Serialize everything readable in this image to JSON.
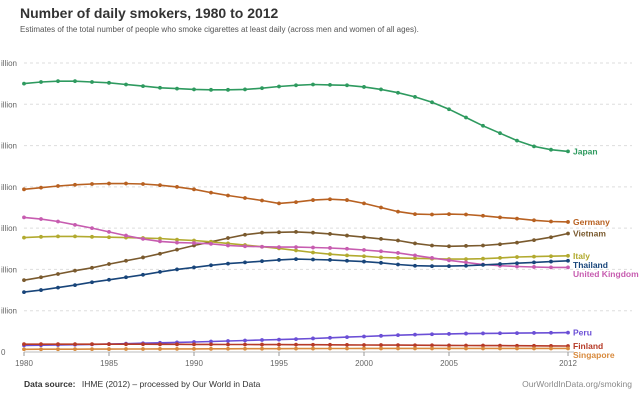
{
  "title": "Number of daily smokers, 1980 to 2012",
  "subtitle": "Estimates of the total number of people who smoke cigarettes at least daily (across men and women of all ages).",
  "footer": {
    "source_label": "Data source:",
    "source_text": "IHME (2012) – processed by Our World in Data",
    "credit": "OurWorldInData.org/smoking"
  },
  "chart_data": {
    "type": "line",
    "title": "Number of daily smokers, 1980 to 2012",
    "xlabel": "",
    "ylabel": "",
    "xlim": [
      1980,
      2012
    ],
    "ylim": [
      0,
      35000000
    ],
    "x_ticks": [
      1980,
      1985,
      1990,
      1995,
      2000,
      2005,
      2012
    ],
    "y_ticks": [
      0,
      5000000,
      10000000,
      15000000,
      20000000,
      25000000,
      30000000,
      35000000
    ],
    "y_tick_labels": [
      "0",
      "illion",
      "illion",
      "illion",
      "illion",
      "illion",
      "illion",
      "illion"
    ],
    "grid": true,
    "legend": "right-end labels",
    "x": [
      1980,
      1981,
      1982,
      1983,
      1984,
      1985,
      1986,
      1987,
      1988,
      1989,
      1990,
      1991,
      1992,
      1993,
      1994,
      1995,
      1996,
      1997,
      1998,
      1999,
      2000,
      2001,
      2002,
      2003,
      2004,
      2005,
      2006,
      2007,
      2008,
      2009,
      2010,
      2011,
      2012
    ],
    "series": [
      {
        "name": "Japan",
        "color": "#2e9a5f",
        "values": [
          32500000,
          32700000,
          32800000,
          32800000,
          32700000,
          32600000,
          32400000,
          32200000,
          32000000,
          31900000,
          31800000,
          31750000,
          31750000,
          31800000,
          31950000,
          32150000,
          32300000,
          32400000,
          32350000,
          32300000,
          32100000,
          31800000,
          31400000,
          30900000,
          30250000,
          29400000,
          28400000,
          27400000,
          26500000,
          25600000,
          24900000,
          24500000,
          24300000
        ]
      },
      {
        "name": "Germany",
        "color": "#b86121",
        "values": [
          19700000,
          19900000,
          20100000,
          20250000,
          20350000,
          20400000,
          20400000,
          20350000,
          20200000,
          20000000,
          19700000,
          19300000,
          18950000,
          18650000,
          18350000,
          18000000,
          18150000,
          18400000,
          18500000,
          18400000,
          18000000,
          17500000,
          17000000,
          16700000,
          16650000,
          16700000,
          16650000,
          16500000,
          16300000,
          16150000,
          15950000,
          15800000,
          15750000
        ]
      },
      {
        "name": "Vietnam",
        "color": "#7a5a2e",
        "values": [
          8700000,
          9050000,
          9450000,
          9850000,
          10200000,
          10650000,
          11050000,
          11450000,
          11900000,
          12400000,
          12900000,
          13350000,
          13800000,
          14200000,
          14450000,
          14500000,
          14550000,
          14450000,
          14300000,
          14100000,
          13900000,
          13700000,
          13500000,
          13150000,
          12900000,
          12800000,
          12850000,
          12900000,
          13050000,
          13250000,
          13550000,
          13900000,
          14350000
        ]
      },
      {
        "name": "Italy",
        "color": "#b2aa2f",
        "values": [
          13850000,
          13950000,
          14000000,
          14000000,
          13950000,
          13900000,
          13850000,
          13800000,
          13750000,
          13600000,
          13500000,
          13350000,
          13150000,
          12950000,
          12750000,
          12550000,
          12300000,
          12050000,
          11850000,
          11700000,
          11600000,
          11450000,
          11400000,
          11350000,
          11300000,
          11250000,
          11250000,
          11300000,
          11400000,
          11500000,
          11550000,
          11600000,
          11650000
        ]
      },
      {
        "name": "United Kingdom",
        "color": "#c75cb0",
        "values": [
          16300000,
          16100000,
          15800000,
          15400000,
          15000000,
          14550000,
          14100000,
          13700000,
          13400000,
          13250000,
          13200000,
          13100000,
          12900000,
          12800000,
          12750000,
          12700000,
          12700000,
          12650000,
          12600000,
          12500000,
          12350000,
          12200000,
          12000000,
          11700000,
          11400000,
          11100000,
          10850000,
          10600000,
          10450000,
          10350000,
          10300000,
          10250000,
          10250000
        ]
      },
      {
        "name": "Thailand",
        "color": "#18457a",
        "values": [
          7250000,
          7500000,
          7800000,
          8100000,
          8450000,
          8750000,
          9050000,
          9350000,
          9700000,
          10000000,
          10250000,
          10500000,
          10700000,
          10850000,
          11000000,
          11150000,
          11250000,
          11200000,
          11150000,
          11050000,
          10950000,
          10800000,
          10600000,
          10450000,
          10400000,
          10400000,
          10450000,
          10550000,
          10650000,
          10750000,
          10850000,
          10950000,
          11050000
        ]
      },
      {
        "name": "Peru",
        "color": "#6b4fd6",
        "values": [
          800000,
          820000,
          850000,
          880000,
          920000,
          960000,
          1010000,
          1060000,
          1110000,
          1160000,
          1210000,
          1270000,
          1330000,
          1390000,
          1450000,
          1500000,
          1560000,
          1640000,
          1720000,
          1800000,
          1880000,
          1960000,
          2040000,
          2100000,
          2150000,
          2190000,
          2230000,
          2250000,
          2270000,
          2290000,
          2310000,
          2330000,
          2350000
        ]
      },
      {
        "name": "Finland",
        "color": "#b63a27",
        "values": [
          950000,
          950000,
          950000,
          950000,
          950000,
          950000,
          940000,
          940000,
          930000,
          930000,
          920000,
          920000,
          910000,
          910000,
          900000,
          900000,
          890000,
          880000,
          870000,
          860000,
          850000,
          840000,
          830000,
          820000,
          810000,
          800000,
          790000,
          780000,
          770000,
          760000,
          750000,
          740000,
          730000
        ]
      },
      {
        "name": "Singapore",
        "color": "#d88a3d",
        "values": [
          330000,
          335000,
          340000,
          345000,
          350000,
          355000,
          360000,
          365000,
          370000,
          375000,
          380000,
          385000,
          390000,
          395000,
          400000,
          405000,
          410000,
          415000,
          420000,
          425000,
          430000,
          430000,
          430000,
          430000,
          430000,
          430000,
          430000,
          430000,
          430000,
          430000,
          430000,
          430000,
          430000
        ]
      }
    ]
  }
}
